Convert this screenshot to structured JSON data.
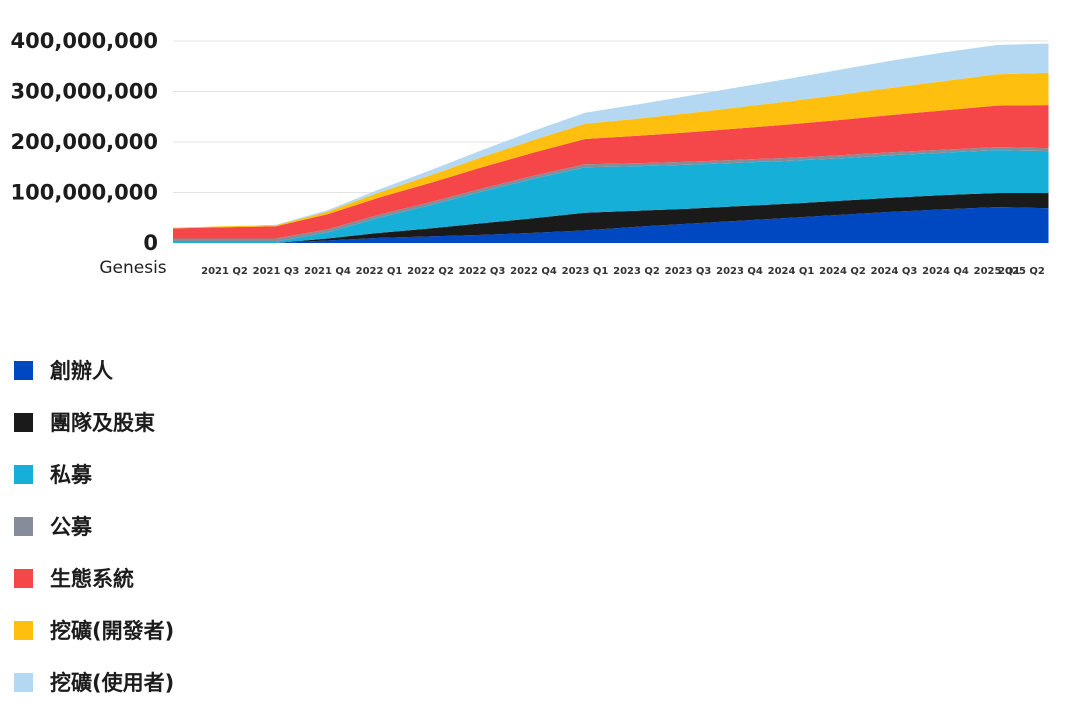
{
  "chart_data": {
    "type": "area",
    "stacked": true,
    "categories": [
      "Genesis",
      "2021 Q2",
      "2021 Q3",
      "2021 Q4",
      "2022 Q1",
      "2022 Q2",
      "2022 Q3",
      "2022 Q4",
      "2023 Q1",
      "2023 Q2",
      "2023 Q3",
      "2023 Q4",
      "2024 Q1",
      "2024 Q2",
      "2024 Q3",
      "2024 Q4",
      "2025 Q1",
      "2025 Q2"
    ],
    "yticks": [
      "0",
      "100,000,000",
      "200,000,000",
      "300,000,000",
      "400,000,000"
    ],
    "ylim": [
      0,
      400000000
    ],
    "grid": true,
    "legend_placement": "bottom",
    "series": [
      {
        "name": "創辦人",
        "color": "#0047c2",
        "values": [
          0,
          0,
          0,
          5000000,
          10000000,
          13000000,
          16000000,
          20000000,
          25000000,
          32000000,
          38000000,
          44000000,
          50000000,
          56000000,
          62000000,
          67000000,
          71000000,
          69000000
        ]
      },
      {
        "name": "團隊及股東",
        "color": "#1a1a1a",
        "values": [
          0,
          0,
          0,
          4000000,
          10000000,
          16000000,
          23000000,
          29000000,
          35000000,
          32000000,
          30000000,
          29000000,
          28000000,
          28000000,
          28000000,
          28000000,
          28000000,
          30000000
        ]
      },
      {
        "name": "私募",
        "color": "#16afd7",
        "values": [
          3000000,
          3000000,
          3000000,
          12000000,
          30000000,
          46000000,
          63000000,
          78000000,
          90000000,
          88000000,
          87000000,
          86000000,
          85000000,
          84000000,
          84000000,
          84000000,
          85000000,
          83000000
        ]
      },
      {
        "name": "公募",
        "color": "#868c99",
        "values": [
          6000000,
          6000000,
          6000000,
          6000000,
          6000000,
          6000000,
          6000000,
          6000000,
          6000000,
          6000000,
          6000000,
          6000000,
          6000000,
          6000000,
          6000000,
          6000000,
          6000000,
          6000000
        ]
      },
      {
        "name": "生態系統",
        "color": "#f5464a",
        "values": [
          20000000,
          22000000,
          24000000,
          30000000,
          34000000,
          38000000,
          42000000,
          46000000,
          50000000,
          54000000,
          58000000,
          62000000,
          66000000,
          70000000,
          74000000,
          78000000,
          82000000,
          85000000
        ]
      },
      {
        "name": "挖礦(開發者)",
        "color": "#ffbf0f",
        "values": [
          1000000,
          2000000,
          2000000,
          5000000,
          10000000,
          15000000,
          20000000,
          25000000,
          30000000,
          34000000,
          38000000,
          42000000,
          46000000,
          50000000,
          54000000,
          58000000,
          62000000,
          64000000
        ]
      },
      {
        "name": "挖礦(使用者)",
        "color": "#b4d8f2",
        "values": [
          0,
          0,
          1000000,
          3000000,
          6000000,
          10000000,
          14000000,
          18000000,
          22000000,
          28000000,
          34000000,
          40000000,
          45000000,
          50000000,
          54000000,
          57000000,
          58000000,
          58000000
        ]
      }
    ]
  }
}
